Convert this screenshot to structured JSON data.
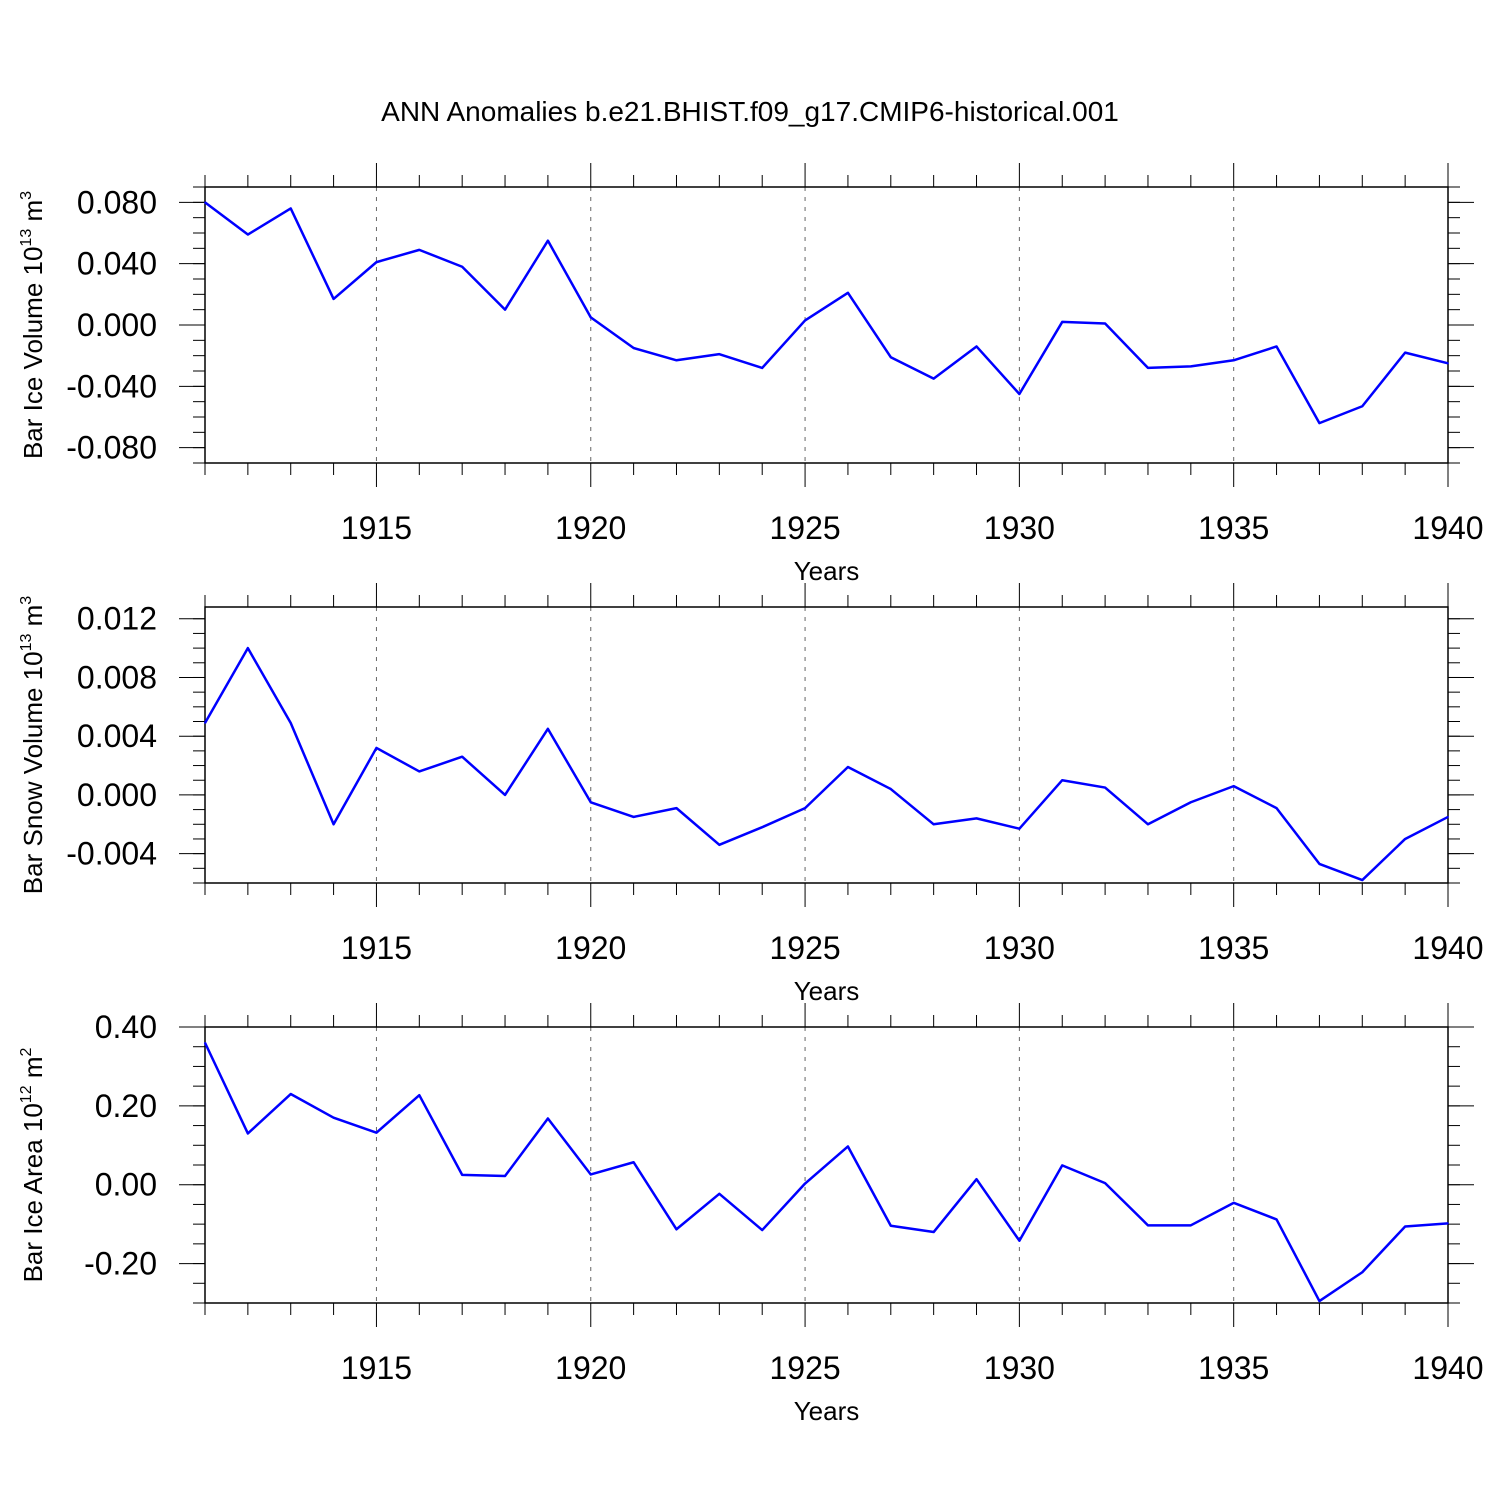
{
  "title": "ANN Anomalies b.e21.BHIST.f09_g17.CMIP6-historical.001",
  "line_color": "#0000ff",
  "chart_data": [
    {
      "type": "line",
      "title": "",
      "xlabel": "Years",
      "ylabel": {
        "base": "Bar Ice Volume 10",
        "exp": "13",
        "unit": " m",
        "unit_exp": "3"
      },
      "xlim": [
        1911,
        1940
      ],
      "ylim": [
        -0.09,
        0.09
      ],
      "x_ticks": [
        "1915",
        "1920",
        "1925",
        "1930",
        "1935",
        "1940"
      ],
      "y_ticks": [
        {
          "value": 0.08,
          "label": "0.080"
        },
        {
          "value": 0.04,
          "label": "0.040"
        },
        {
          "value": 0.0,
          "label": "0.000"
        },
        {
          "value": -0.04,
          "label": "-0.040"
        },
        {
          "value": -0.08,
          "label": "-0.080"
        }
      ],
      "grid": "vertical dashed at major ticks",
      "series": [
        {
          "x": [
            1911,
            1912,
            1913,
            1914,
            1915,
            1916,
            1917,
            1918,
            1919,
            1920,
            1921,
            1922,
            1923,
            1924,
            1925,
            1926,
            1927,
            1928,
            1929,
            1930,
            1931,
            1932,
            1933,
            1934,
            1935,
            1936,
            1937,
            1938,
            1939,
            1940
          ],
          "values": [
            0.08,
            0.059,
            0.076,
            0.017,
            0.041,
            0.049,
            0.038,
            0.01,
            0.055,
            0.005,
            -0.015,
            -0.023,
            -0.019,
            -0.028,
            0.003,
            0.021,
            -0.021,
            -0.035,
            -0.014,
            -0.045,
            0.002,
            0.001,
            -0.028,
            -0.027,
            -0.023,
            -0.014,
            -0.064,
            -0.053,
            -0.018,
            -0.025
          ]
        }
      ]
    },
    {
      "type": "line",
      "title": "",
      "xlabel": "Years",
      "ylabel": {
        "base": "Bar Snow Volume 10",
        "exp": "13",
        "unit": " m",
        "unit_exp": "3"
      },
      "xlim": [
        1911,
        1940
      ],
      "ylim": [
        -0.006,
        0.0128
      ],
      "x_ticks": [
        "1915",
        "1920",
        "1925",
        "1930",
        "1935",
        "1940"
      ],
      "y_ticks": [
        {
          "value": 0.012,
          "label": "0.012"
        },
        {
          "value": 0.008,
          "label": "0.008"
        },
        {
          "value": 0.004,
          "label": "0.004"
        },
        {
          "value": 0.0,
          "label": "0.000"
        },
        {
          "value": -0.004,
          "label": "-0.004"
        }
      ],
      "grid": "vertical dashed at major ticks",
      "series": [
        {
          "x": [
            1911,
            1912,
            1913,
            1914,
            1915,
            1916,
            1917,
            1918,
            1919,
            1920,
            1921,
            1922,
            1923,
            1924,
            1925,
            1926,
            1927,
            1928,
            1929,
            1930,
            1931,
            1932,
            1933,
            1934,
            1935,
            1936,
            1937,
            1938,
            1939,
            1940
          ],
          "values": [
            0.0049,
            0.01,
            0.0049,
            -0.002,
            0.0032,
            0.0016,
            0.0026,
            0.0,
            0.0045,
            -0.0005,
            -0.0015,
            -0.0009,
            -0.0034,
            -0.0022,
            -0.0009,
            0.0019,
            0.0004,
            -0.002,
            -0.0016,
            -0.0023,
            0.001,
            0.0005,
            -0.002,
            -0.0005,
            0.0006,
            -0.0009,
            -0.0047,
            -0.0058,
            -0.003,
            -0.0015
          ]
        }
      ]
    },
    {
      "type": "line",
      "title": "",
      "xlabel": "Years",
      "ylabel": {
        "base": "Bar Ice Area 10",
        "exp": "12",
        "unit": " m",
        "unit_exp": "2"
      },
      "xlim": [
        1911,
        1940
      ],
      "ylim": [
        -0.3,
        0.4
      ],
      "x_ticks": [
        "1915",
        "1920",
        "1925",
        "1930",
        "1935",
        "1940"
      ],
      "y_ticks": [
        {
          "value": 0.4,
          "label": "0.40"
        },
        {
          "value": 0.2,
          "label": "0.20"
        },
        {
          "value": 0.0,
          "label": "0.00"
        },
        {
          "value": -0.2,
          "label": "-0.20"
        }
      ],
      "grid": "vertical dashed at major ticks",
      "series": [
        {
          "x": [
            1911,
            1912,
            1913,
            1914,
            1915,
            1916,
            1917,
            1918,
            1919,
            1920,
            1921,
            1922,
            1923,
            1924,
            1925,
            1926,
            1927,
            1928,
            1929,
            1930,
            1931,
            1932,
            1933,
            1934,
            1935,
            1936,
            1937,
            1938,
            1939,
            1940
          ],
          "values": [
            0.36,
            0.13,
            0.23,
            0.17,
            0.132,
            0.227,
            0.025,
            0.022,
            0.168,
            0.026,
            0.057,
            -0.113,
            -0.023,
            -0.115,
            0.003,
            0.097,
            -0.104,
            -0.12,
            0.014,
            -0.142,
            0.049,
            0.004,
            -0.103,
            -0.103,
            -0.046,
            -0.088,
            -0.295,
            -0.222,
            -0.106,
            -0.098
          ]
        }
      ]
    }
  ]
}
